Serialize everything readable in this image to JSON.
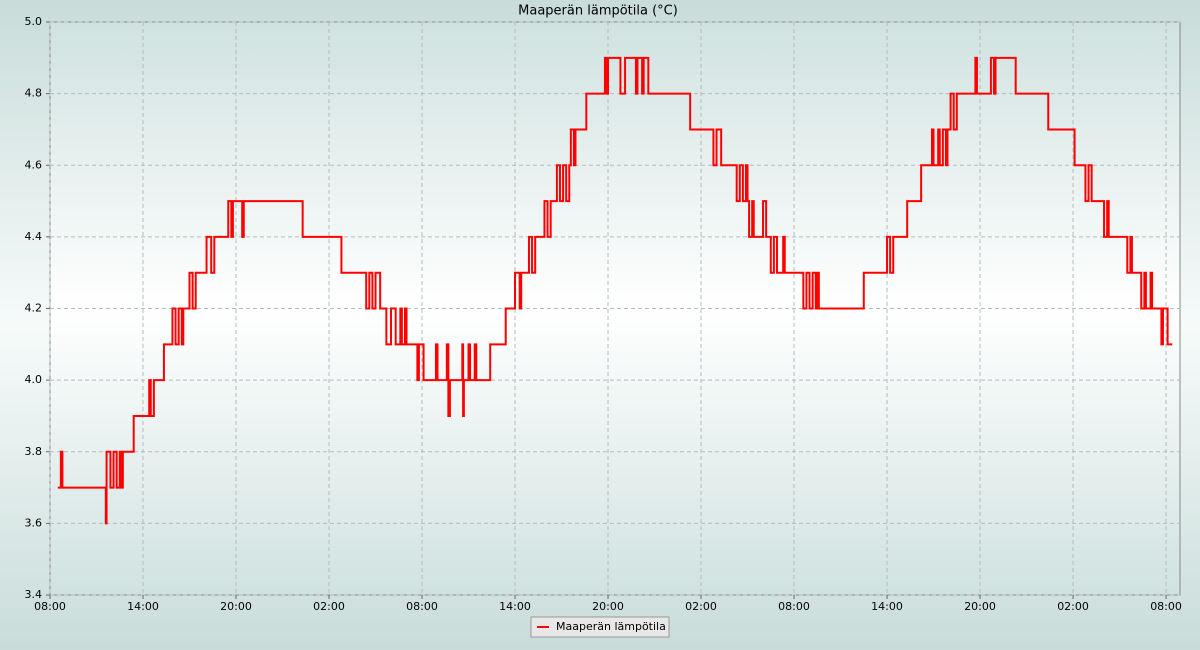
{
  "chart_data": {
    "type": "line",
    "title": "Maaperän lämpötila (°C)",
    "step": "post",
    "grid": true,
    "legend": "bottom",
    "xlim": [
      0,
      72.9
    ],
    "ylim": [
      3.4,
      5.0
    ],
    "xticks": [
      {
        "value": 0,
        "label": "08:00"
      },
      {
        "value": 6,
        "label": "14:00"
      },
      {
        "value": 12,
        "label": "20:00"
      },
      {
        "value": 18,
        "label": "02:00"
      },
      {
        "value": 24,
        "label": "08:00"
      },
      {
        "value": 30,
        "label": "14:00"
      },
      {
        "value": 36,
        "label": "20:00"
      },
      {
        "value": 42,
        "label": "02:00"
      },
      {
        "value": 48,
        "label": "08:00"
      },
      {
        "value": 54,
        "label": "14:00"
      },
      {
        "value": 60,
        "label": "20:00"
      },
      {
        "value": 66,
        "label": "02:00"
      },
      {
        "value": 72,
        "label": "08:00"
      }
    ],
    "yticks": [
      3.4,
      3.6,
      3.8,
      {
        "value": 4,
        "label": "4.0"
      },
      4.2,
      4.4,
      4.6,
      4.8,
      {
        "value": 5,
        "label": "5.0"
      }
    ],
    "x": [
      0.5,
      0.7,
      0.8,
      3.6,
      3.65,
      3.9,
      4.1,
      4.3,
      4.5,
      4.6,
      4.7,
      5.4,
      6.4,
      6.5,
      6.7,
      7.35,
      7.9,
      8.1,
      8.3,
      8.5,
      8.6,
      9.0,
      9.2,
      9.4,
      10.1,
      10.4,
      10.6,
      11.5,
      11.7,
      11.8,
      12.4,
      12.5,
      16.3,
      18.8,
      20.4,
      20.6,
      20.8,
      21.0,
      21.3,
      21.7,
      22.0,
      22.3,
      22.6,
      22.7,
      22.9,
      23.0,
      23.7,
      23.8,
      24.1,
      24.9,
      25.0,
      25.6,
      25.7,
      25.8,
      26.6,
      26.65,
      26.7,
      27.0,
      27.1,
      27.4,
      27.5,
      28.4,
      29.4,
      30.0,
      30.3,
      30.4,
      30.9,
      31.1,
      31.3,
      31.9,
      32.1,
      32.3,
      32.7,
      32.9,
      33.1,
      33.3,
      33.5,
      33.6,
      33.8,
      33.9,
      34.6,
      35.8,
      35.9,
      36.0,
      36.8,
      37.1,
      37.8,
      37.9,
      38.2,
      38.3,
      38.6,
      41.3,
      42.8,
      43.0,
      43.3,
      44.3,
      44.5,
      44.7,
      44.9,
      45.0,
      45.1,
      45.3,
      45.4,
      46.0,
      46.2,
      46.5,
      46.7,
      46.9,
      47.3,
      47.4,
      48.6,
      48.8,
      49.0,
      49.2,
      49.4,
      49.5,
      49.6,
      52.5,
      54.0,
      54.2,
      54.4,
      55.3,
      56.2,
      56.9,
      57.0,
      57.3,
      57.4,
      57.6,
      57.8,
      57.9,
      58.1,
      58.3,
      58.5,
      59.7,
      59.8,
      60.7,
      60.9,
      61.0,
      62.3,
      64.4,
      66.1,
      66.8,
      67.0,
      67.2,
      68.0,
      68.2,
      68.3,
      69.5,
      69.7,
      69.8,
      70.4,
      70.6,
      70.7,
      71.0,
      71.1,
      71.7,
      71.8,
      72.1,
      72.4
    ],
    "series": [
      {
        "name": "Maaperän lämpötila",
        "color": "#ff0000",
        "values": [
          3.7,
          3.8,
          3.7,
          3.6,
          3.8,
          3.7,
          3.8,
          3.7,
          3.8,
          3.7,
          3.8,
          3.9,
          4.0,
          3.9,
          4.0,
          4.1,
          4.2,
          4.1,
          4.2,
          4.1,
          4.2,
          4.3,
          4.2,
          4.3,
          4.4,
          4.3,
          4.4,
          4.5,
          4.4,
          4.5,
          4.4,
          4.5,
          4.4,
          4.3,
          4.2,
          4.3,
          4.2,
          4.3,
          4.2,
          4.1,
          4.2,
          4.1,
          4.2,
          4.1,
          4.2,
          4.1,
          4.0,
          4.1,
          4.0,
          4.1,
          4.0,
          4.1,
          3.9,
          4.0,
          4.1,
          3.9,
          4.0,
          4.1,
          4.0,
          4.1,
          4.0,
          4.1,
          4.2,
          4.3,
          4.2,
          4.3,
          4.4,
          4.3,
          4.4,
          4.5,
          4.4,
          4.5,
          4.6,
          4.5,
          4.6,
          4.5,
          4.6,
          4.7,
          4.6,
          4.7,
          4.8,
          4.9,
          4.8,
          4.9,
          4.8,
          4.9,
          4.8,
          4.9,
          4.8,
          4.9,
          4.8,
          4.7,
          4.6,
          4.7,
          4.6,
          4.5,
          4.6,
          4.5,
          4.6,
          4.5,
          4.4,
          4.5,
          4.4,
          4.5,
          4.4,
          4.3,
          4.4,
          4.3,
          4.4,
          4.3,
          4.2,
          4.3,
          4.2,
          4.3,
          4.2,
          4.3,
          4.2,
          4.3,
          4.4,
          4.3,
          4.4,
          4.5,
          4.6,
          4.7,
          4.6,
          4.7,
          4.6,
          4.7,
          4.6,
          4.7,
          4.8,
          4.7,
          4.8,
          4.9,
          4.8,
          4.9,
          4.8,
          4.9,
          4.8,
          4.7,
          4.6,
          4.5,
          4.6,
          4.5,
          4.4,
          4.5,
          4.4,
          4.3,
          4.4,
          4.3,
          4.2,
          4.3,
          4.2,
          4.3,
          4.2,
          4.1,
          4.2,
          4.1,
          4.1
        ]
      }
    ]
  }
}
